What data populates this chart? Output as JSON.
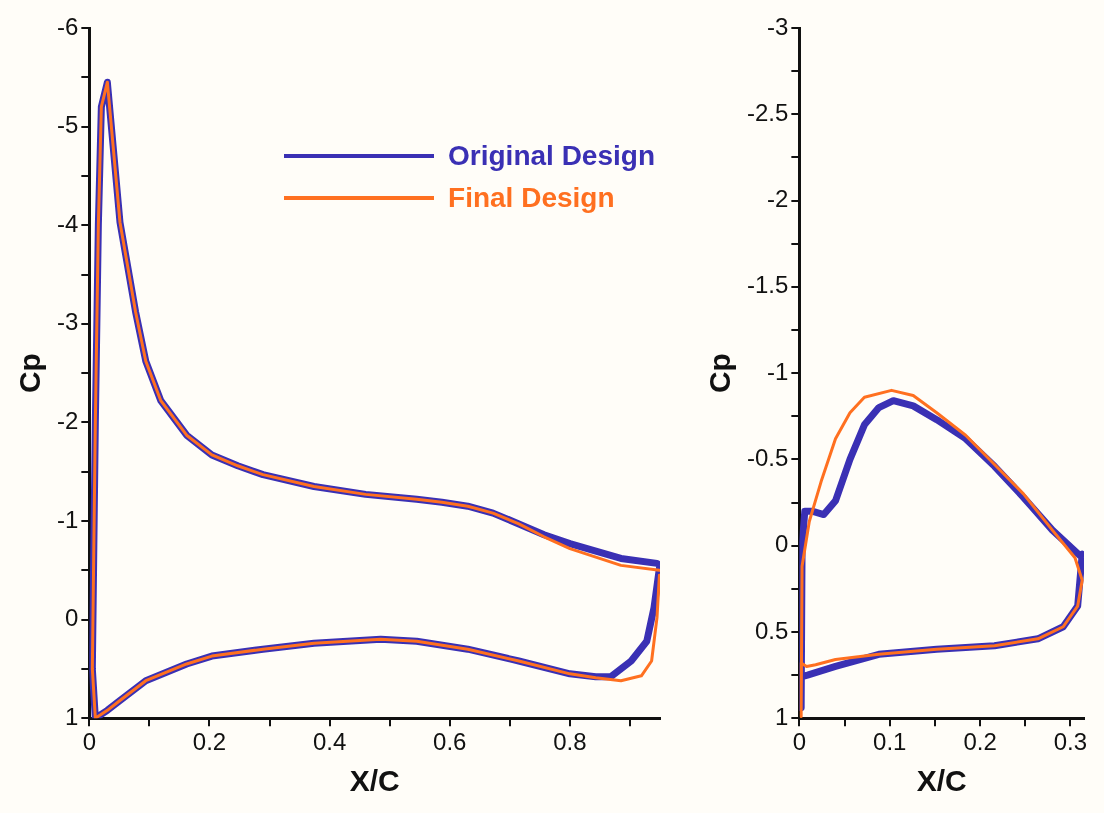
{
  "chart_data": [
    {
      "type": "line",
      "xlabel": "X/C",
      "ylabel": "Cp",
      "legend": "top right",
      "grid": false,
      "marker": "none",
      "line_style": "solid",
      "xlim": [
        0,
        0.95
      ],
      "ylim": [
        1,
        -6
      ],
      "xticks": [
        0,
        {
          "value": 0.1,
          "label": null
        },
        0.2,
        {
          "value": 0.3,
          "label": null
        },
        0.4,
        {
          "value": 0.5,
          "label": null
        },
        0.6,
        {
          "value": 0.7,
          "label": null
        },
        0.8,
        {
          "value": 0.9,
          "label": null
        }
      ],
      "yticks": [
        -6,
        {
          "value": -5.5,
          "label": null
        },
        -5,
        {
          "value": -4.5,
          "label": null
        },
        -4,
        {
          "value": -3.5,
          "label": null
        },
        -3,
        {
          "value": -2.5,
          "label": null
        },
        -2,
        {
          "value": -1.5,
          "label": null
        },
        -1,
        {
          "value": -0.5,
          "label": null
        },
        0,
        {
          "value": 0.5,
          "label": null
        },
        1
      ],
      "series": [
        {
          "name": "Original Design",
          "color": "#3a30b4",
          "x": [
            0.945,
            0.885,
            0.8,
            0.757,
            0.715,
            0.672,
            0.63,
            0.587,
            0.545,
            0.46,
            0.374,
            0.289,
            0.247,
            0.204,
            0.162,
            0.119,
            0.094,
            0.077,
            0.051,
            0.03,
            0.02,
            0.015,
            0.01,
            0.005,
            0.01,
            0.03,
            0.051,
            0.094,
            0.162,
            0.204,
            0.289,
            0.374,
            0.485,
            0.545,
            0.63,
            0.715,
            0.8,
            0.843,
            0.868,
            0.902,
            0.928,
            0.94,
            0.949
          ],
          "values": [
            -0.57,
            -0.62,
            -0.77,
            -0.86,
            -0.97,
            -1.08,
            -1.15,
            -1.19,
            -1.22,
            -1.27,
            -1.35,
            -1.47,
            -1.56,
            -1.67,
            -1.87,
            -2.22,
            -2.62,
            -3.12,
            -4.03,
            -5.45,
            -5.2,
            -4,
            -2,
            0.5,
            1,
            0.92,
            0.82,
            0.62,
            0.45,
            0.37,
            0.3,
            0.24,
            0.2,
            0.22,
            0.3,
            0.42,
            0.55,
            0.58,
            0.58,
            0.42,
            0.22,
            -0.12,
            -0.52
          ]
        },
        {
          "name": "Final Design",
          "color": "#ff7020",
          "x": [
            0.949,
            0.885,
            0.8,
            0.757,
            0.715,
            0.672,
            0.63,
            0.587,
            0.545,
            0.46,
            0.374,
            0.289,
            0.247,
            0.204,
            0.162,
            0.119,
            0.094,
            0.077,
            0.051,
            0.03,
            0.02,
            0.015,
            0.01,
            0.005,
            0.01,
            0.03,
            0.051,
            0.094,
            0.162,
            0.204,
            0.289,
            0.374,
            0.485,
            0.545,
            0.63,
            0.715,
            0.8,
            0.843,
            0.885,
            0.919,
            0.936,
            0.945,
            0.949
          ],
          "values": [
            -0.5,
            -0.55,
            -0.72,
            -0.84,
            -0.97,
            -1.08,
            -1.15,
            -1.19,
            -1.22,
            -1.27,
            -1.35,
            -1.47,
            -1.56,
            -1.67,
            -1.87,
            -2.22,
            -2.62,
            -3.12,
            -4.03,
            -5.45,
            -5.2,
            -4,
            -2,
            0.5,
            1,
            0.92,
            0.82,
            0.62,
            0.45,
            0.37,
            0.3,
            0.24,
            0.2,
            0.22,
            0.3,
            0.42,
            0.55,
            0.59,
            0.62,
            0.57,
            0.42,
            -0.02,
            -0.45
          ]
        }
      ]
    },
    {
      "type": "line",
      "xlabel": "X/C",
      "ylabel": "Cp",
      "legend": false,
      "grid": false,
      "marker": "none",
      "line_style": "solid",
      "xlim": [
        0,
        0.315
      ],
      "ylim": [
        1,
        -3
      ],
      "xticks": [
        0,
        {
          "value": 0.05,
          "label": null
        },
        0.1,
        {
          "value": 0.15,
          "label": null
        },
        0.2,
        {
          "value": 0.25,
          "label": null
        },
        0.3
      ],
      "yticks": [
        -3,
        {
          "value": -2.75,
          "label": null
        },
        -2.5,
        {
          "value": -2.25,
          "label": null
        },
        -2,
        {
          "value": -1.75,
          "label": null
        },
        -1.5,
        {
          "value": -1.25,
          "label": null
        },
        -1,
        {
          "value": -0.75,
          "label": null
        },
        -0.5,
        {
          "value": -0.25,
          "label": null
        },
        0,
        {
          "value": 0.25,
          "label": null
        },
        0.5,
        {
          "value": 0.75,
          "label": null
        },
        1
      ],
      "series": [
        {
          "color": "#3a30b4",
          "x": [
            0.002,
            0.003,
            0.006,
            0.014,
            0.027,
            0.04,
            0.056,
            0.072,
            0.088,
            0.104,
            0.126,
            0.152,
            0.184,
            0.216,
            0.248,
            0.28,
            0.311,
            0.313,
            0.308,
            0.292,
            0.264,
            0.216,
            0.152,
            0.088,
            0.04,
            0.009,
            0.002
          ],
          "values": [
            0.94,
            0.01,
            -0.2,
            -0.2,
            -0.18,
            -0.26,
            -0.5,
            -0.7,
            -0.8,
            -0.84,
            -0.81,
            -0.73,
            -0.62,
            -0.46,
            -0.28,
            -0.09,
            0.06,
            0.05,
            0.35,
            0.47,
            0.54,
            0.58,
            0.6,
            0.63,
            0.7,
            0.75,
            0.76
          ]
        },
        {
          "color": "#ff7020",
          "x": [
            0.002,
            0.003,
            0.011,
            0.024,
            0.04,
            0.056,
            0.072,
            0.102,
            0.126,
            0.152,
            0.184,
            0.216,
            0.248,
            0.28,
            0.305,
            0.313,
            0.308,
            0.292,
            0.264,
            0.216,
            0.152,
            0.088,
            0.04,
            0.018,
            0.008,
            0.002,
            0.002
          ],
          "values": [
            0.96,
            0.12,
            -0.14,
            -0.37,
            -0.62,
            -0.77,
            -0.86,
            -0.9,
            -0.87,
            -0.77,
            -0.64,
            -0.47,
            -0.3,
            -0.09,
            0.07,
            0.2,
            0.35,
            0.47,
            0.54,
            0.58,
            0.6,
            0.63,
            0.66,
            0.69,
            0.7,
            0.68,
            0.99
          ]
        }
      ]
    }
  ]
}
